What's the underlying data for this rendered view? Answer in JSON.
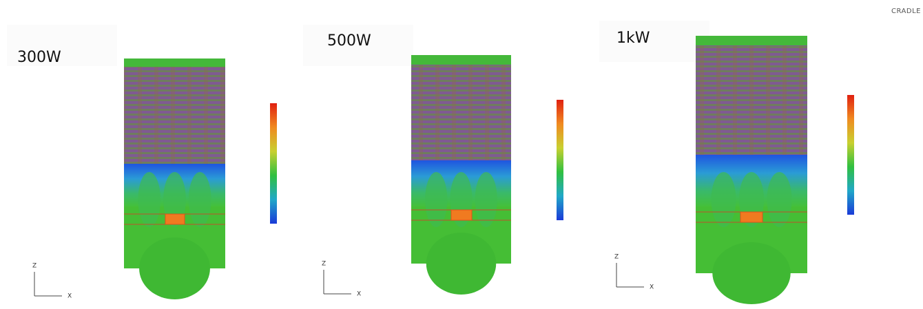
{
  "logo": "CRADLE",
  "panels": [
    {
      "label": "300W",
      "axis_z": "Z",
      "axis_x": "X"
    },
    {
      "label": "500W",
      "axis_z": "Z",
      "axis_x": "X"
    },
    {
      "label": "1kW",
      "axis_z": "Z",
      "axis_x": "X"
    }
  ]
}
